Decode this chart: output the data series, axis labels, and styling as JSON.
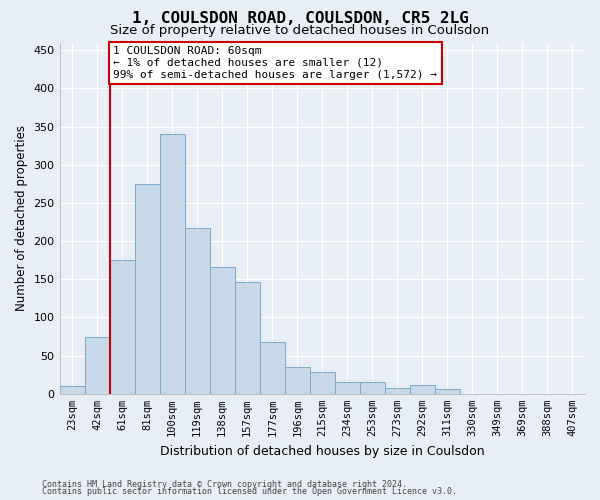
{
  "title": "1, COULSDON ROAD, COULSDON, CR5 2LG",
  "subtitle": "Size of property relative to detached houses in Coulsdon",
  "xlabel": "Distribution of detached houses by size in Coulsdon",
  "ylabel": "Number of detached properties",
  "bin_labels": [
    "23sqm",
    "42sqm",
    "61sqm",
    "81sqm",
    "100sqm",
    "119sqm",
    "138sqm",
    "157sqm",
    "177sqm",
    "196sqm",
    "215sqm",
    "234sqm",
    "253sqm",
    "273sqm",
    "292sqm",
    "311sqm",
    "330sqm",
    "349sqm",
    "369sqm",
    "388sqm",
    "407sqm"
  ],
  "bar_heights": [
    10,
    75,
    175,
    275,
    340,
    217,
    166,
    146,
    68,
    35,
    28,
    15,
    15,
    8,
    12,
    6,
    0,
    0,
    0,
    0,
    0
  ],
  "bar_color": "#c8d9ea",
  "bar_edgecolor": "#7aaac8",
  "vline_color": "#cc0000",
  "vline_bin_index": 2,
  "annotation_text": "1 COULSDON ROAD: 60sqm\n← 1% of detached houses are smaller (12)\n99% of semi-detached houses are larger (1,572) →",
  "annotation_box_facecolor": "#ffffff",
  "annotation_box_edgecolor": "#cc0000",
  "ylim": [
    0,
    460
  ],
  "yticks": [
    0,
    50,
    100,
    150,
    200,
    250,
    300,
    350,
    400,
    450
  ],
  "footer1": "Contains HM Land Registry data © Crown copyright and database right 2024.",
  "footer2": "Contains public sector information licensed under the Open Government Licence v3.0.",
  "background_color": "#e8eef5",
  "plot_background": "#e8eef5",
  "grid_color": "#ffffff",
  "title_fontsize": 11.5,
  "subtitle_fontsize": 9.5,
  "tick_fontsize": 7.5,
  "ylabel_fontsize": 8.5,
  "xlabel_fontsize": 9,
  "annotation_fontsize": 8,
  "footer_fontsize": 6
}
